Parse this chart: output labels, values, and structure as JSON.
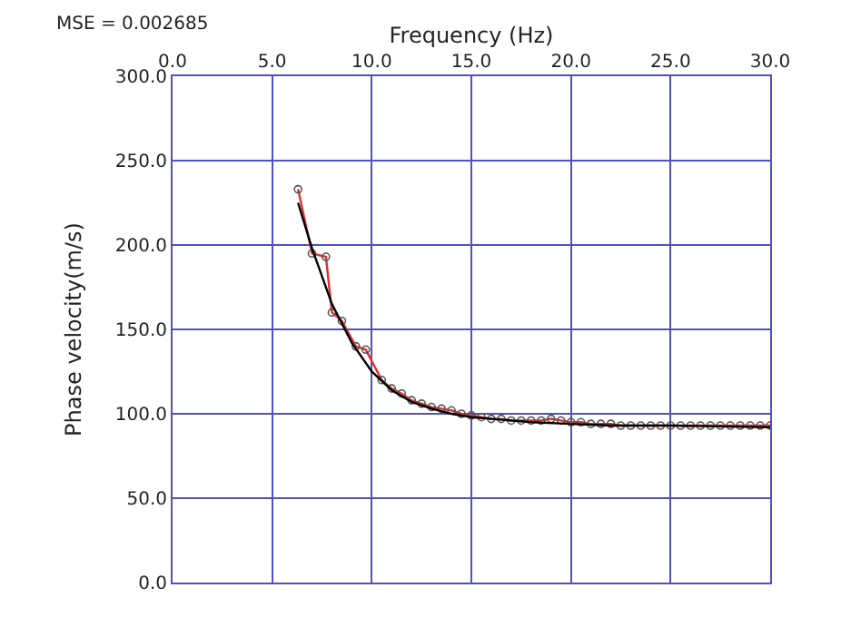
{
  "chart_data": {
    "type": "line",
    "xlabel": "Frequency (Hz)",
    "ylabel": "Phase velocity(m/s)",
    "annotations": [
      "MSE = 0.002685"
    ],
    "xlim": [
      0,
      30
    ],
    "xticks": [
      {
        "value": 0,
        "label": "0.0"
      },
      {
        "value": 5,
        "label": "5.0"
      },
      {
        "value": 10,
        "label": "10.0"
      },
      {
        "value": 15,
        "label": "15.0"
      },
      {
        "value": 20,
        "label": "20.0"
      },
      {
        "value": 25,
        "label": "25.0"
      },
      {
        "value": 30,
        "label": "30.0"
      }
    ],
    "ylim": [
      0,
      300
    ],
    "yticks": [
      {
        "value": 0,
        "label": "0.0"
      },
      {
        "value": 50,
        "label": "50.0"
      },
      {
        "value": 100,
        "label": "100.0"
      },
      {
        "value": 150,
        "label": "150.0"
      },
      {
        "value": 200,
        "label": "200.0"
      },
      {
        "value": 250,
        "label": "250.0"
      },
      {
        "value": 300,
        "label": "300.0"
      }
    ],
    "grid": true,
    "legend": false,
    "series": [
      {
        "color": "#e03030",
        "marker": "circle",
        "x": [
          6.3,
          7.0,
          7.7,
          8.0,
          8.5,
          9.2,
          9.7,
          10.5,
          11.0,
          11.5,
          12.0,
          12.5,
          13.0,
          13.5,
          14.0,
          14.5,
          15.0,
          15.5,
          16.0,
          16.5,
          17.0,
          17.5,
          18.0,
          18.5,
          19.0,
          19.5,
          20.0,
          20.5,
          21.0,
          21.5,
          22.0,
          22.5,
          23.0,
          23.5,
          24.0,
          24.5,
          25.0,
          25.5,
          26.0,
          26.5,
          27.0,
          27.5,
          28.0,
          28.5,
          29.0,
          29.5,
          30.0
        ],
        "values": [
          233,
          195,
          193,
          160,
          155,
          140,
          138,
          120,
          115,
          112,
          108,
          106,
          104,
          103,
          102,
          100,
          99,
          98,
          97,
          97,
          96,
          96,
          96,
          96,
          97,
          96,
          95,
          95,
          94,
          94,
          94,
          93,
          93,
          93,
          93,
          93,
          93,
          93,
          93,
          93,
          93,
          93,
          93,
          93,
          93,
          93,
          93
        ]
      },
      {
        "color": "#000000",
        "marker": "none",
        "x": [
          6.3,
          7.0,
          8.0,
          9.0,
          10.0,
          11.0,
          12.0,
          13.0,
          14.0,
          15.0,
          16.0,
          18.0,
          20.0,
          22.0,
          25.0,
          30.0
        ],
        "values": [
          225,
          198,
          165,
          142,
          125,
          114,
          107,
          103,
          100,
          98,
          97,
          95,
          94,
          93,
          93,
          92
        ]
      }
    ]
  }
}
